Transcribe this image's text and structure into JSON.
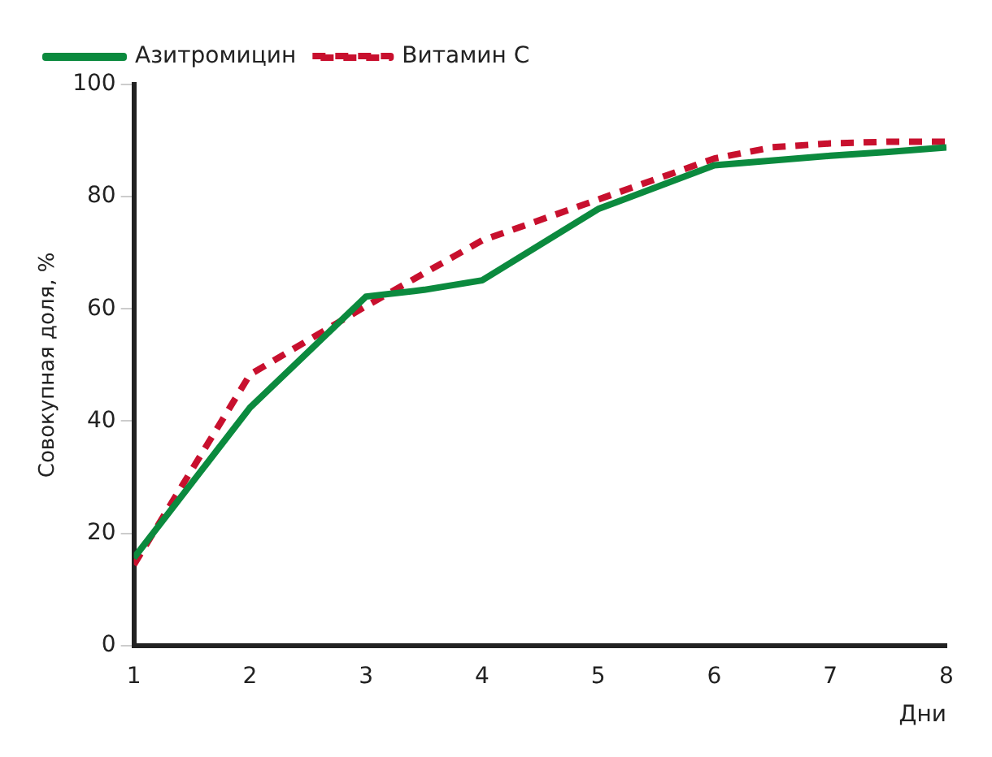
{
  "chart_data": {
    "type": "line",
    "xlabel": "Дни",
    "ylabel": "Совокупная доля, %",
    "xlim": [
      1,
      8
    ],
    "xticks": [
      1,
      2,
      3,
      4,
      5,
      6,
      7,
      8
    ],
    "ylim": [
      0,
      100
    ],
    "yticks": [
      0,
      20,
      40,
      60,
      80,
      100
    ],
    "grid": false,
    "legend": "top left",
    "marker": "none",
    "series": [
      {
        "name": "Азитромицин",
        "color": "#0b8a3e",
        "line_style": "solid",
        "x": [
          1,
          2,
          3,
          3.5,
          4,
          5,
          6,
          7,
          7.5,
          8
        ],
        "values": [
          15.6,
          42.4,
          62.2,
          63.4,
          65.1,
          77.8,
          85.6,
          87.3,
          88,
          88.8
        ]
      },
      {
        "name": "Витамин С",
        "color": "#c8102e",
        "line_style": "dashed",
        "x": [
          1,
          2,
          3,
          4,
          5,
          6,
          6.5,
          7,
          7.5,
          8
        ],
        "values": [
          14.4,
          48.3,
          60.5,
          72.2,
          79.5,
          86.8,
          88.8,
          89.5,
          89.8,
          89.8
        ]
      }
    ]
  }
}
